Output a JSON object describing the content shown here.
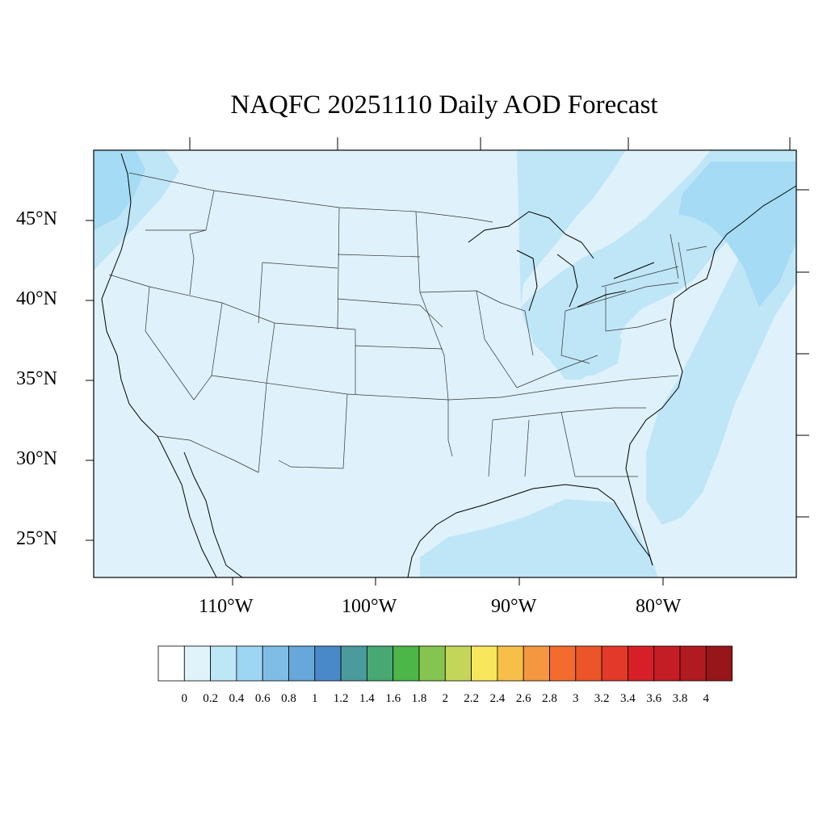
{
  "title": "NAQFC 20251110 Daily AOD Forecast",
  "map": {
    "lat_labels": [
      "45°N",
      "40°N",
      "35°N",
      "30°N",
      "25°N"
    ],
    "lon_labels": [
      "110°W",
      "100°W",
      "90°W",
      "80°W"
    ],
    "colors": {
      "ocean_base": "#dff2fb",
      "land_base": "#dff2fb",
      "plume_light": "#bfe6f7",
      "plume_medium": "#a5dbf4",
      "border": "#000000"
    }
  },
  "colorbar": {
    "colors": [
      "#ffffff",
      "#e0f3fb",
      "#bde6f7",
      "#9dd6f2",
      "#80bde6",
      "#68a7d9",
      "#4a89c9",
      "#4a9a9e",
      "#47a873",
      "#4cb649",
      "#85c44e",
      "#c3d65a",
      "#f8e75d",
      "#f7bf4a",
      "#f59740",
      "#f36c2e",
      "#ec5529",
      "#e2392a",
      "#d71f27",
      "#c51d25",
      "#b11a21",
      "#961619"
    ],
    "labels": [
      "0",
      "0.2",
      "0.4",
      "0.6",
      "0.8",
      "1",
      "1.2",
      "1.4",
      "1.6",
      "1.8",
      "2",
      "2.2",
      "2.4",
      "2.6",
      "2.8",
      "3",
      "3.2",
      "3.4",
      "3.6",
      "3.8",
      "4"
    ]
  }
}
